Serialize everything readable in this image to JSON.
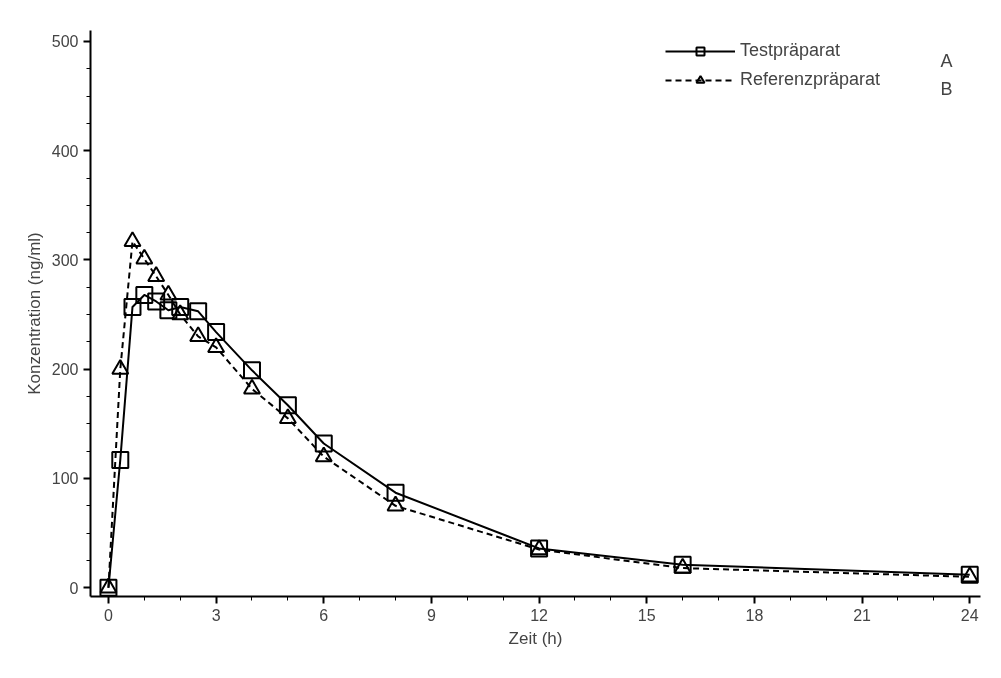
{
  "chart_data": {
    "type": "line",
    "xlabel": "Zeit (h)",
    "ylabel": "Konzentration (ng/ml)",
    "xlim": [
      -0.5,
      24.3
    ],
    "ylim": [
      -8,
      510
    ],
    "xticks": [
      0,
      3,
      6,
      9,
      12,
      15,
      18,
      21,
      24
    ],
    "yticks": [
      0,
      100,
      200,
      300,
      400,
      500
    ],
    "grid": false,
    "legend": "top right",
    "annotations": [
      "A",
      "B"
    ],
    "series": [
      {
        "name": "Testpräparat",
        "color": "#000000",
        "marker": "square",
        "line_style": "solid",
        "x": [
          0,
          0.33,
          0.67,
          1,
          1.33,
          1.67,
          2,
          2.5,
          3,
          4,
          5,
          6,
          8,
          12,
          16,
          24
        ],
        "values": [
          0,
          117,
          257,
          268,
          262,
          254,
          257,
          253,
          234,
          199,
          167,
          132,
          87,
          36,
          21,
          12
        ]
      },
      {
        "name": "Referenzpräparat",
        "color": "#000000",
        "marker": "triangle",
        "line_style": "dashed",
        "x": [
          0,
          0.33,
          0.67,
          1,
          1.33,
          1.67,
          2,
          2.5,
          3,
          4,
          5,
          6,
          8,
          12,
          16,
          24
        ],
        "values": [
          0,
          200,
          317,
          301,
          285,
          268,
          250,
          230,
          220,
          182,
          155,
          120,
          75,
          35,
          18,
          10
        ]
      }
    ]
  }
}
